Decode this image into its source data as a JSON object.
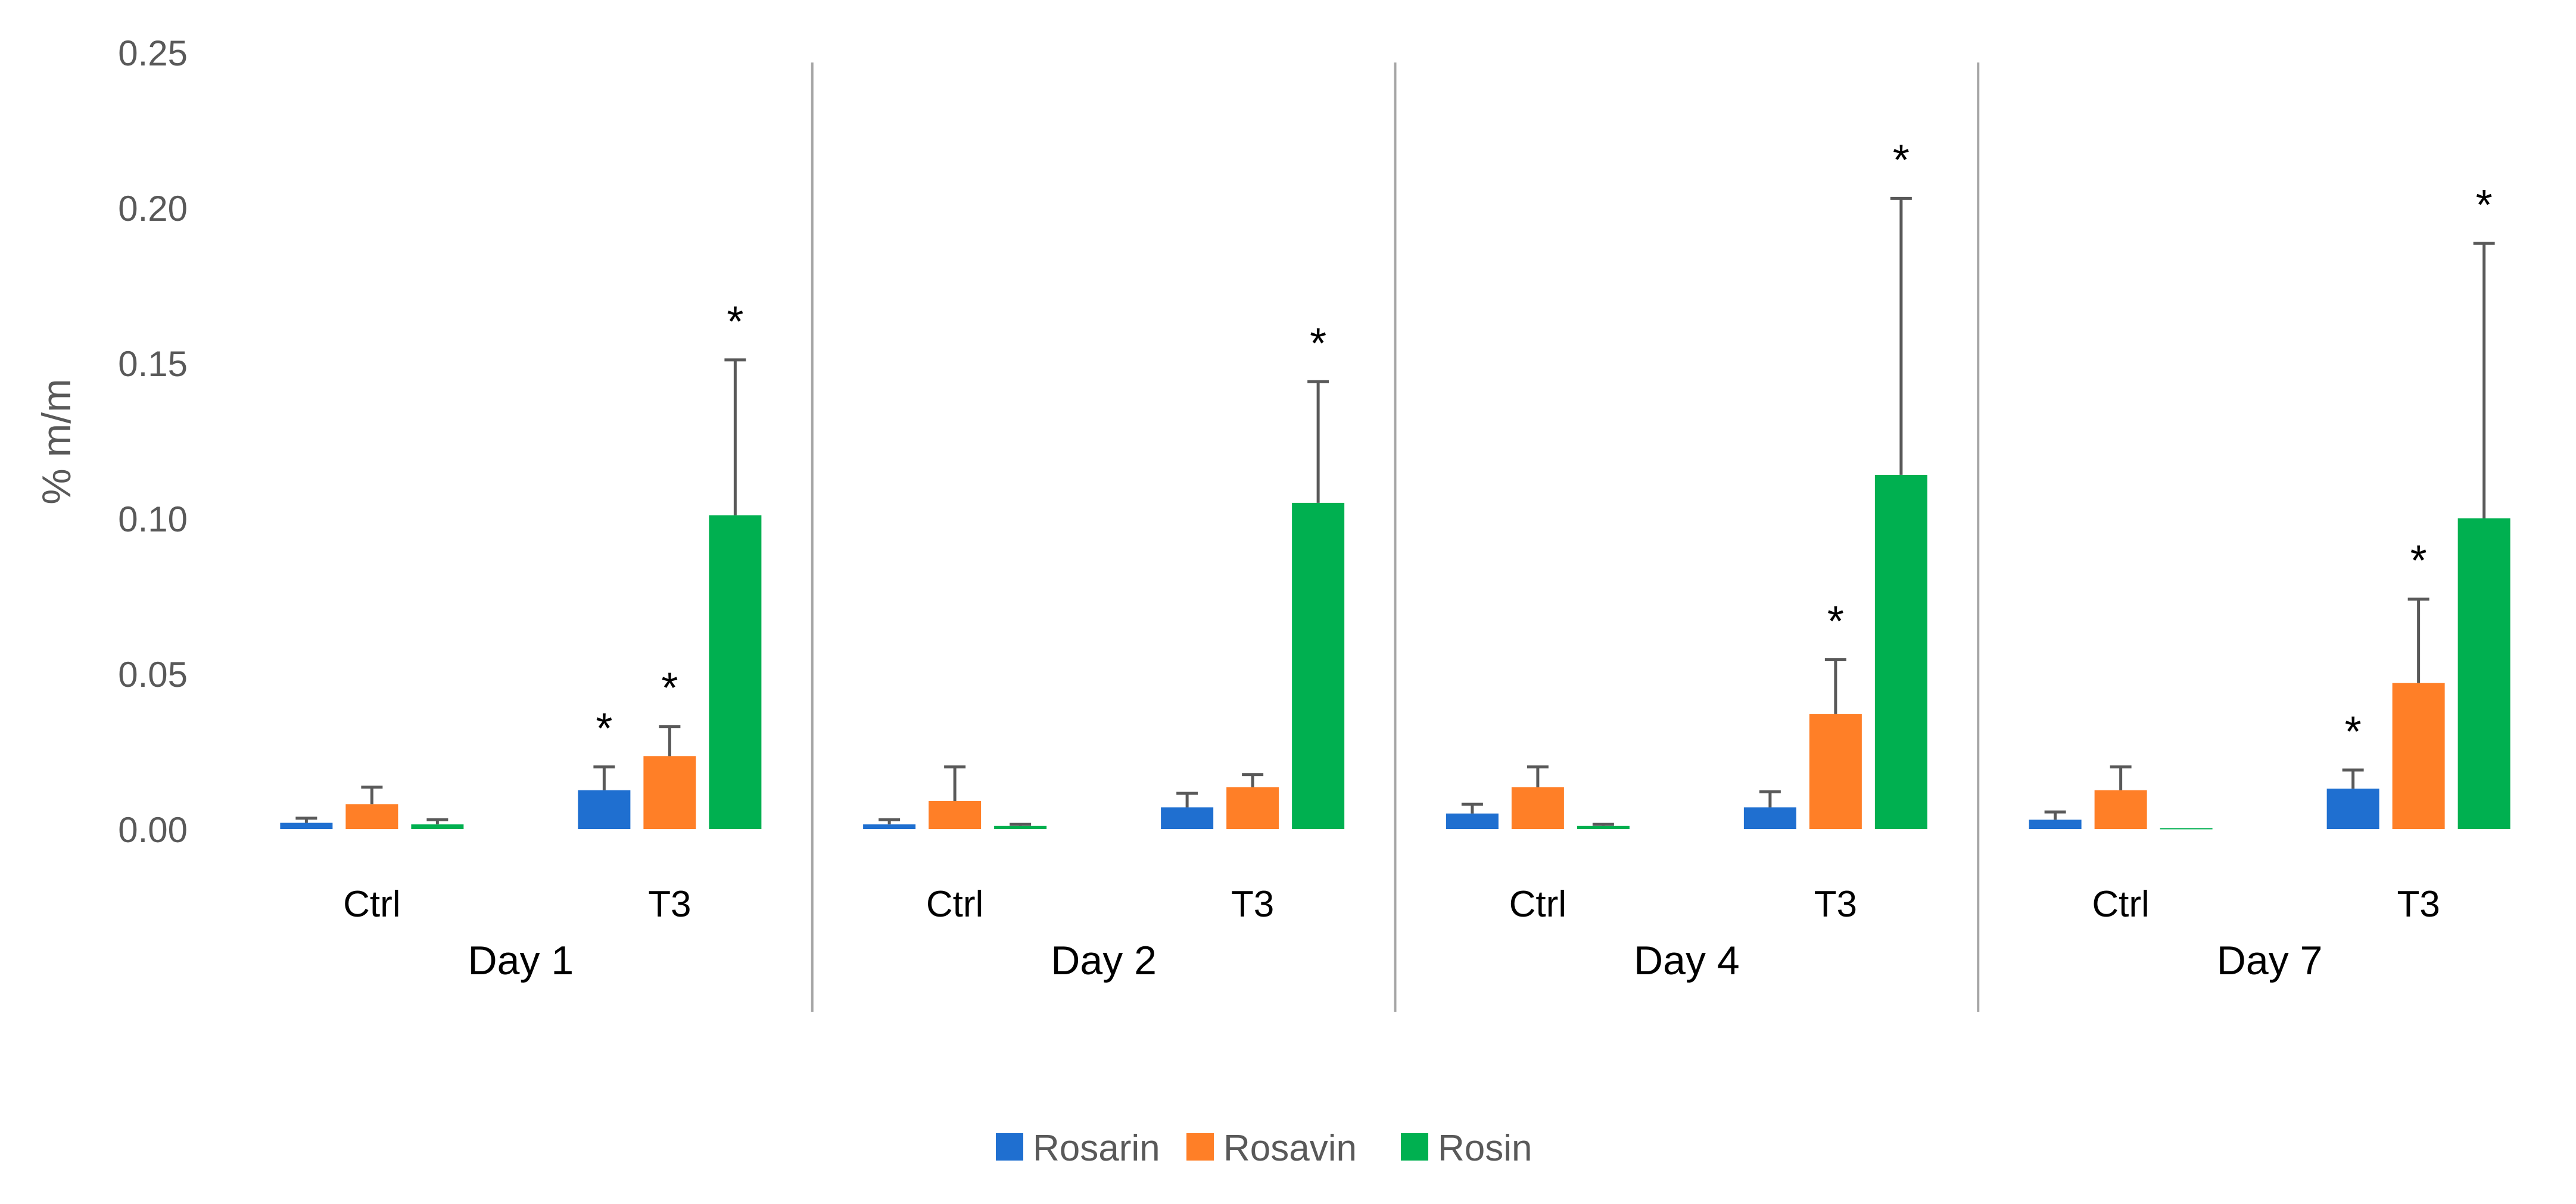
{
  "chart_data": {
    "type": "bar",
    "title": "",
    "xlabel": "",
    "ylabel": "% m/m",
    "ylim": [
      0,
      0.25
    ],
    "yticks": [
      "0.00",
      "0.05",
      "0.10",
      "0.15",
      "0.20",
      "0.25"
    ],
    "grid": false,
    "legend_position": "bottom-center",
    "series": [
      {
        "name": "Rosarin",
        "color": "#1f6fd0"
      },
      {
        "name": "Rosavin",
        "color": "#ff7f27"
      },
      {
        "name": "Rosin",
        "color": "#00b050"
      }
    ],
    "groups": [
      {
        "label": "Day 1",
        "categories": [
          {
            "label": "Ctrl",
            "values": [
              0.002,
              0.008,
              0.0015
            ],
            "errors": [
              0.0015,
              0.0055,
              0.0015
            ],
            "significant": [
              false,
              false,
              false
            ]
          },
          {
            "label": "T3",
            "values": [
              0.0125,
              0.0235,
              0.101
            ],
            "errors": [
              0.0075,
              0.0095,
              0.05
            ],
            "significant": [
              true,
              true,
              true
            ]
          }
        ]
      },
      {
        "label": "Day 2",
        "categories": [
          {
            "label": "Ctrl",
            "values": [
              0.0015,
              0.009,
              0.001
            ],
            "errors": [
              0.0015,
              0.011,
              0.0005
            ],
            "significant": [
              false,
              false,
              false
            ]
          },
          {
            "label": "T3",
            "values": [
              0.007,
              0.0135,
              0.105
            ],
            "errors": [
              0.0045,
              0.004,
              0.039
            ],
            "significant": [
              false,
              false,
              true
            ]
          }
        ]
      },
      {
        "label": "Day 4",
        "categories": [
          {
            "label": "Ctrl",
            "values": [
              0.005,
              0.0135,
              0.001
            ],
            "errors": [
              0.003,
              0.0065,
              0.0005
            ],
            "significant": [
              false,
              false,
              false
            ]
          },
          {
            "label": "T3",
            "values": [
              0.007,
              0.037,
              0.114
            ],
            "errors": [
              0.005,
              0.0175,
              0.089
            ],
            "significant": [
              false,
              true,
              true
            ]
          }
        ]
      },
      {
        "label": "Day 7",
        "categories": [
          {
            "label": "Ctrl",
            "values": [
              0.003,
              0.0125,
              0.0003
            ],
            "errors": [
              0.0025,
              0.0075,
              0.0
            ],
            "significant": [
              false,
              false,
              false
            ]
          },
          {
            "label": "T3",
            "values": [
              0.013,
              0.047,
              0.1
            ],
            "errors": [
              0.006,
              0.027,
              0.0885
            ],
            "significant": [
              true,
              true,
              true
            ]
          }
        ]
      }
    ],
    "significance_marker": "*"
  }
}
